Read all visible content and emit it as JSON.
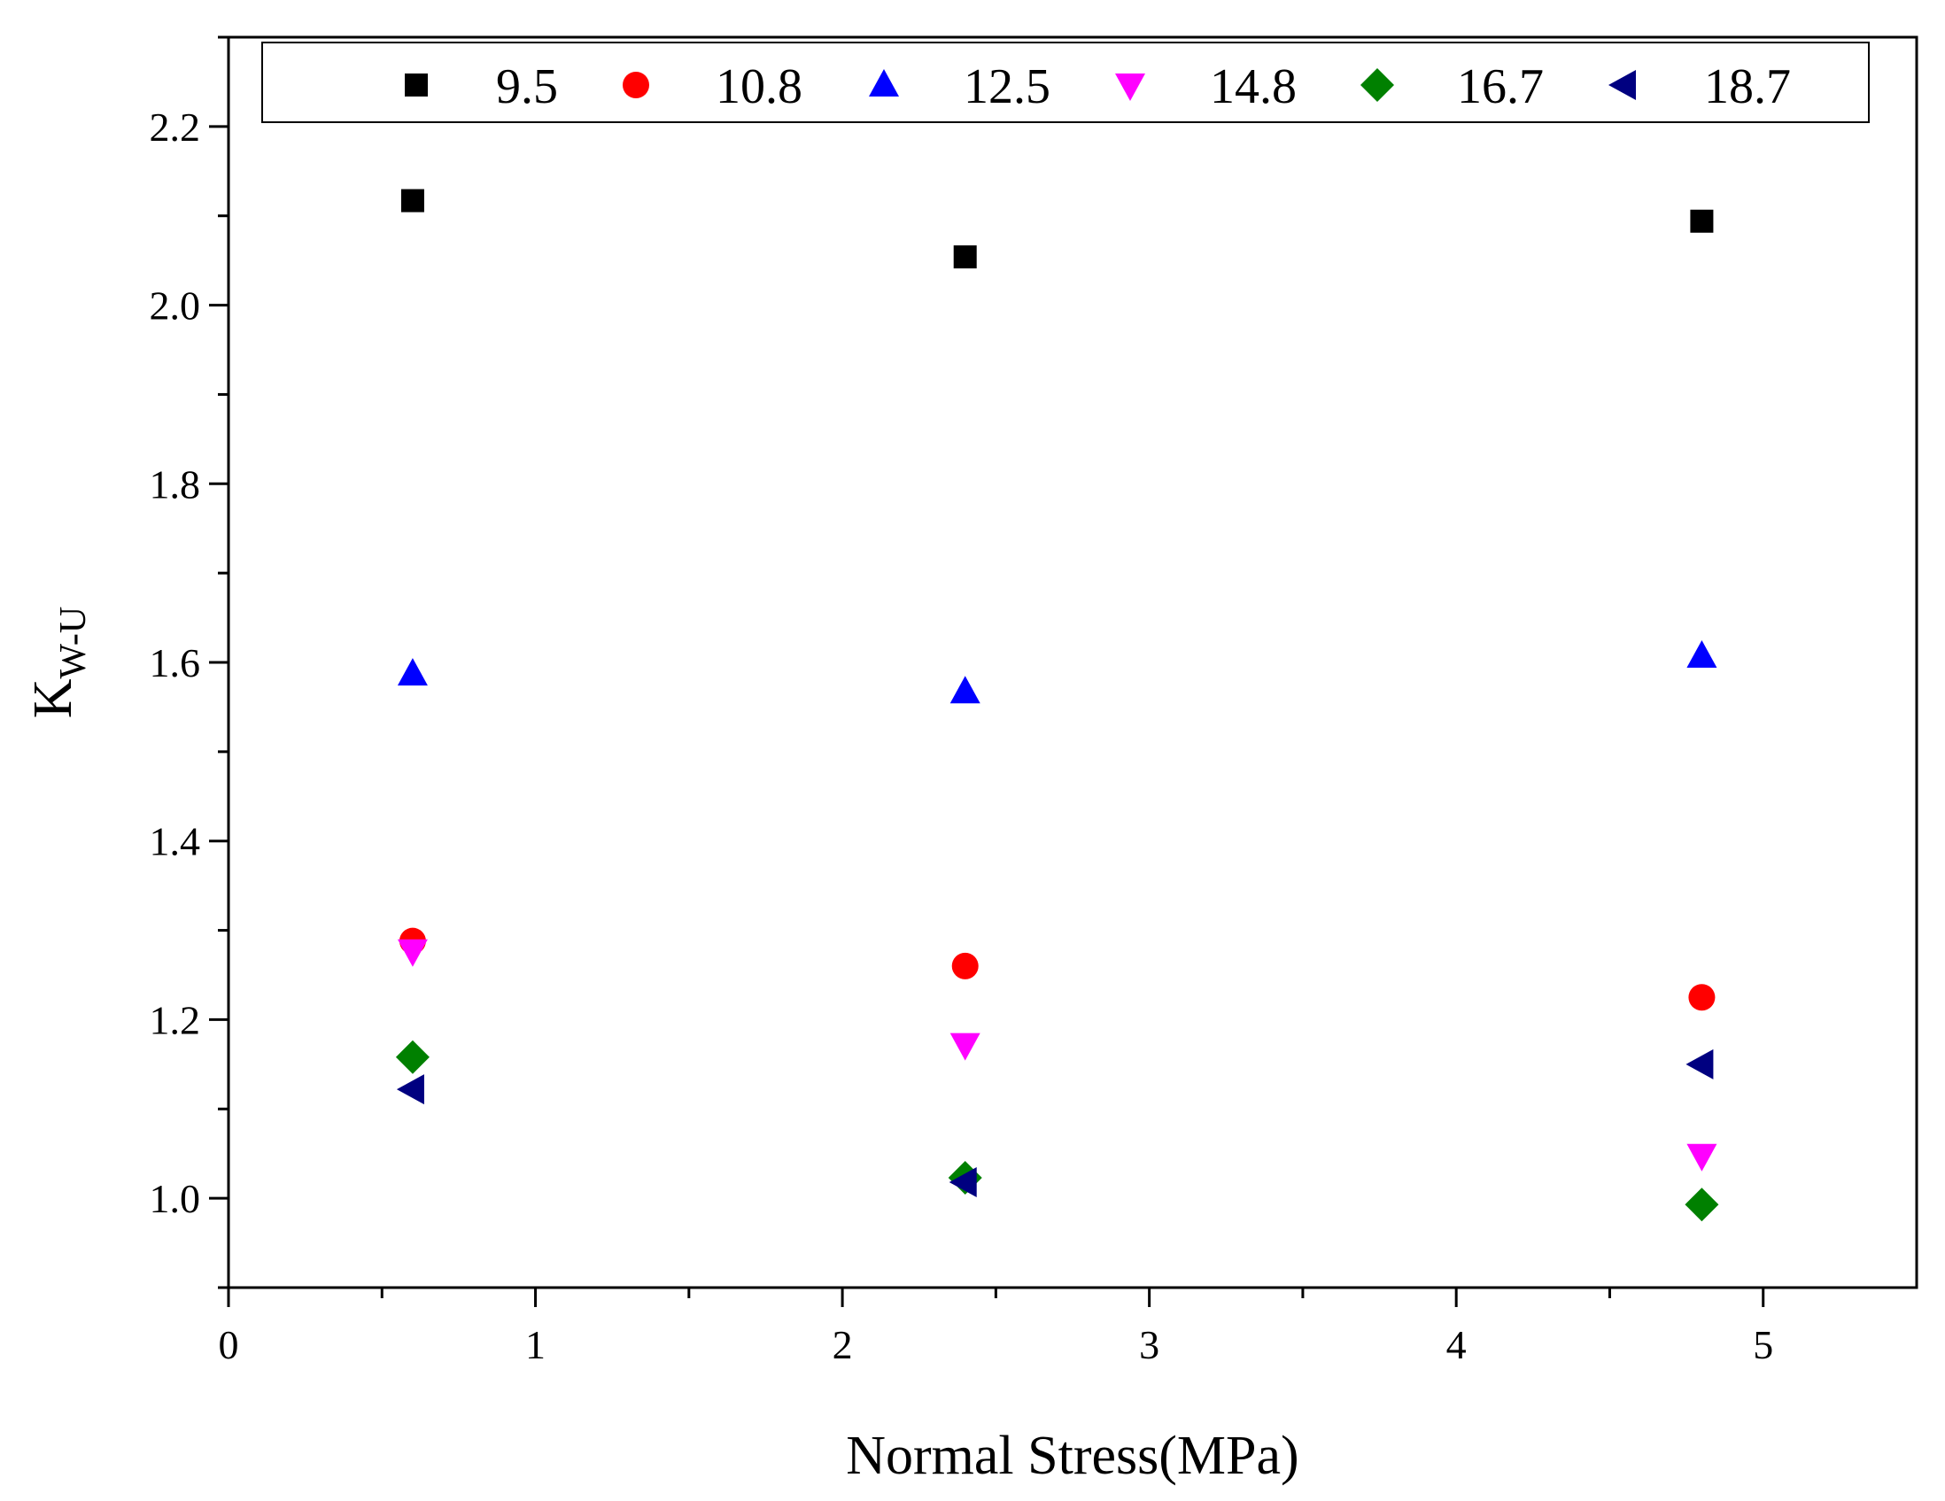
{
  "chart_data": {
    "type": "scatter",
    "title": "",
    "xlabel": "Normal Stress(MPa)",
    "ylabel_main": "K",
    "ylabel_sub": "W-U",
    "xlim": [
      0,
      5.5
    ],
    "ylim": [
      0.9,
      2.3
    ],
    "xticks": [
      0,
      1,
      2,
      3,
      4,
      5
    ],
    "xtick_labels": [
      "0",
      "1",
      "2",
      "3",
      "4",
      "5"
    ],
    "yticks": [
      1.0,
      1.2,
      1.4,
      1.6,
      1.8,
      2.0,
      2.2
    ],
    "ytick_labels": [
      "1.0",
      "1.2",
      "1.4",
      "1.6",
      "1.8",
      "2.0",
      "2.2"
    ],
    "legend_position": "top",
    "series": [
      {
        "name": "9.5",
        "marker": "square",
        "color": "#000000",
        "x": [
          0.6,
          2.4,
          4.8
        ],
        "y": [
          2.117,
          2.054,
          2.094
        ]
      },
      {
        "name": "10.8",
        "marker": "circle",
        "color": "#ff0000",
        "x": [
          0.6,
          2.4,
          4.8
        ],
        "y": [
          1.288,
          1.26,
          1.225
        ]
      },
      {
        "name": "12.5",
        "marker": "triangle-up",
        "color": "#0000ff",
        "x": [
          0.6,
          2.4,
          4.8
        ],
        "y": [
          1.587,
          1.567,
          1.607
        ]
      },
      {
        "name": "14.8",
        "marker": "triangle-down",
        "color": "#ff00ff",
        "x": [
          0.6,
          2.4,
          4.8
        ],
        "y": [
          1.277,
          1.172,
          1.048
        ]
      },
      {
        "name": "16.7",
        "marker": "diamond",
        "color": "#008000",
        "x": [
          0.6,
          2.4,
          4.8
        ],
        "y": [
          1.158,
          1.023,
          0.993
        ]
      },
      {
        "name": "18.7",
        "marker": "triangle-left",
        "color": "#000080",
        "x": [
          0.6,
          2.4,
          4.8
        ],
        "y": [
          1.122,
          1.018,
          1.15
        ]
      }
    ]
  }
}
